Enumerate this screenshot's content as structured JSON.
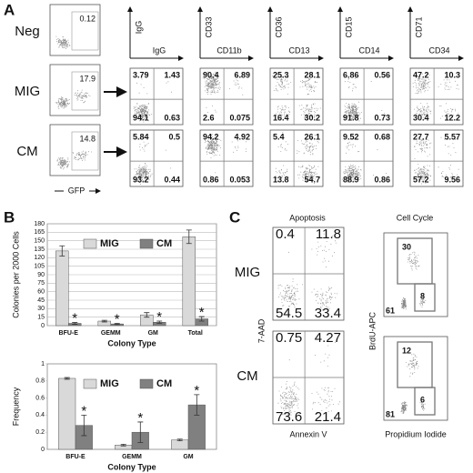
{
  "panel_labels": [
    "A",
    "B",
    "C"
  ],
  "panel_a": {
    "gfp_plots": [
      {
        "label": "Neg",
        "value": 0.12
      },
      {
        "label": "MIG",
        "value": 17.9
      },
      {
        "label": "CM",
        "value": 14.8
      }
    ],
    "gfp_axis": "GFP",
    "markers": [
      {
        "y": "IgG",
        "x": "IgG"
      },
      {
        "y": "CD33",
        "x": "CD11b"
      },
      {
        "y": "CD36",
        "x": "CD13"
      },
      {
        "y": "CD15",
        "x": "CD14"
      },
      {
        "y": "CD71",
        "x": "CD34"
      }
    ],
    "quadrant_rows": [
      [
        [
          3.79,
          1.43,
          94.1,
          0.63
        ],
        [
          90.4,
          6.89,
          2.6,
          0.075
        ],
        [
          25.3,
          28.1,
          16.4,
          30.2
        ],
        [
          6.86,
          0.56,
          91.8,
          0.73
        ],
        [
          47.2,
          10.3,
          30.4,
          12.2
        ]
      ],
      [
        [
          5.84,
          0.5,
          93.2,
          0.44
        ],
        [
          94.2,
          4.92,
          0.86,
          0.053
        ],
        [
          5.4,
          26.1,
          13.8,
          54.7
        ],
        [
          9.52,
          0.68,
          88.9,
          0.86
        ],
        [
          27.7,
          5.57,
          57.2,
          9.56
        ]
      ]
    ]
  },
  "chart_data": [
    {
      "type": "bar",
      "y_label": "Colonies per 2000 Cells",
      "x_label": "Colony Type",
      "categories": [
        "BFU-E",
        "GEMM",
        "GM",
        "Total"
      ],
      "series": [
        {
          "name": "MIG",
          "color": "#d9d9d9",
          "values": [
            132,
            8,
            19,
            157
          ],
          "errors": [
            9,
            1.5,
            4,
            12
          ]
        },
        {
          "name": "CM",
          "color": "#808080",
          "values": [
            4,
            3,
            6,
            12
          ],
          "errors": [
            1.5,
            1,
            2,
            4
          ]
        }
      ],
      "annotations": [
        "*",
        "*",
        "*",
        "*"
      ],
      "ylim": [
        0,
        180
      ],
      "yticks": [
        0,
        15,
        30,
        45,
        60,
        75,
        90,
        105,
        120,
        135,
        150,
        165,
        180
      ],
      "grid": true
    },
    {
      "type": "bar",
      "y_label": "Frequency",
      "x_label": "Colony Type",
      "categories": [
        "BFU-E",
        "GEMM",
        "GM"
      ],
      "series": [
        {
          "name": "MIG",
          "color": "#d9d9d9",
          "values": [
            0.83,
            0.05,
            0.11
          ],
          "errors": [
            0.01,
            0.01,
            0.01
          ]
        },
        {
          "name": "CM",
          "color": "#808080",
          "values": [
            0.28,
            0.2,
            0.52
          ],
          "errors": [
            0.12,
            0.12,
            0.12
          ]
        }
      ],
      "annotations": [
        "*",
        "*",
        "*"
      ],
      "ylim": [
        0,
        1
      ],
      "yticks": [
        0,
        0.2,
        0.4,
        0.6,
        0.8,
        1
      ],
      "grid": false
    }
  ],
  "panel_c": {
    "apoptosis_title": "Apoptosis",
    "cell_cycle_title": "Cell Cycle",
    "apoptosis_axes": {
      "y": "7-AAD",
      "x": "Annexin V"
    },
    "cell_cycle_axes": {
      "y": "BrdU-APC",
      "x": "Propidium Iodide"
    },
    "rows": [
      {
        "label": "MIG",
        "apoptosis": [
          0.4,
          11.8,
          54.5,
          33.4
        ],
        "cell_cycle": [
          30,
          8,
          61
        ]
      },
      {
        "label": "CM",
        "apoptosis": [
          0.75,
          4.27,
          73.6,
          21.4
        ],
        "cell_cycle": [
          12,
          6,
          81
        ]
      }
    ]
  }
}
